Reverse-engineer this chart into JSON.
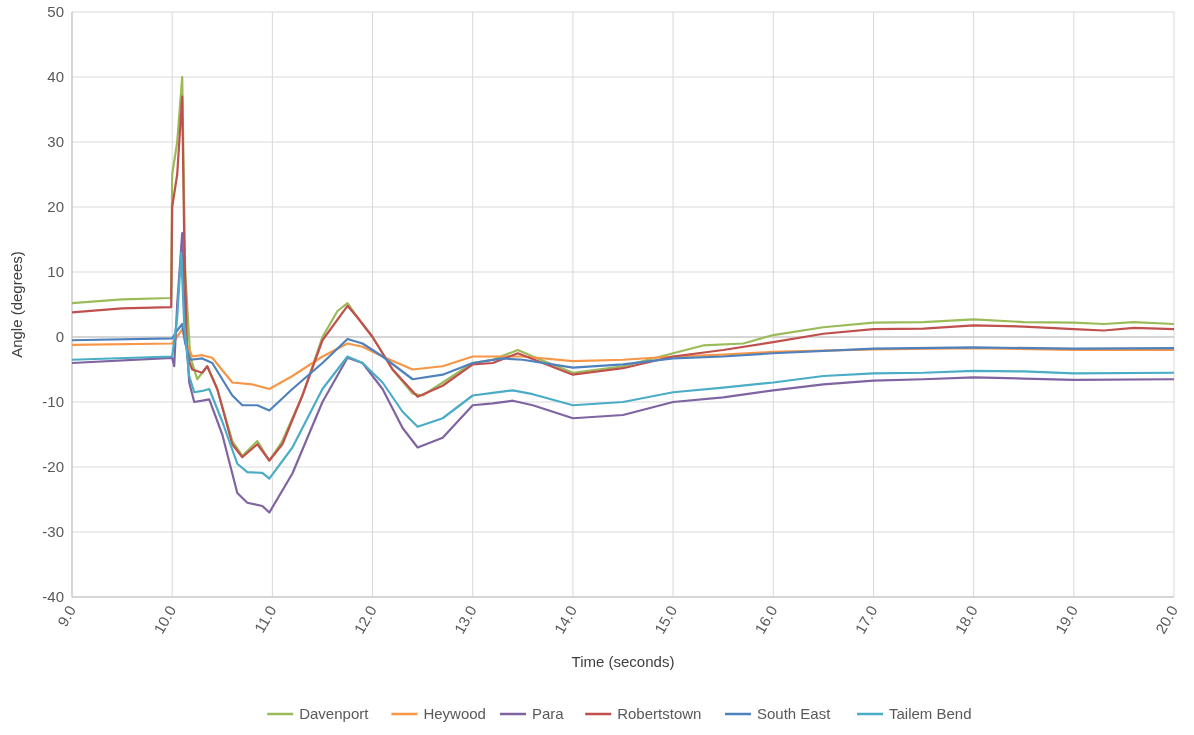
{
  "chart_data": {
    "type": "line",
    "xlabel": "Time (seconds)",
    "ylabel": "Angle (degrees)",
    "xlim": [
      9,
      20
    ],
    "ylim": [
      -40,
      50
    ],
    "xticks": [
      {
        "value": 9,
        "label": "9.0"
      },
      {
        "value": 10,
        "label": "10.0"
      },
      {
        "value": 11,
        "label": "11.0"
      },
      {
        "value": 12,
        "label": "12.0"
      },
      {
        "value": 13,
        "label": "13.0"
      },
      {
        "value": 14,
        "label": "14.0"
      },
      {
        "value": 15,
        "label": "15.0"
      },
      {
        "value": 16,
        "label": "16.0"
      },
      {
        "value": 17,
        "label": "17.0"
      },
      {
        "value": 18,
        "label": "18.0"
      },
      {
        "value": 19,
        "label": "19.0"
      },
      {
        "value": 20,
        "label": "20.0"
      }
    ],
    "yticks": [
      -40,
      -30,
      -20,
      -10,
      0,
      10,
      20,
      30,
      40,
      50
    ],
    "grid": true,
    "legend": "bottom",
    "marker": "none",
    "line_style": "solid",
    "series": [
      {
        "name": "Davenport",
        "color": "#9bbb59",
        "x": [
          9,
          9.5,
          9.99,
          10,
          10.05,
          10.1,
          10.13,
          10.18,
          10.25,
          10.35,
          10.45,
          10.6,
          10.7,
          10.85,
          10.97,
          11.1,
          11.3,
          11.5,
          11.65,
          11.75,
          11.85,
          12,
          12.2,
          12.4,
          12.5,
          12.7,
          13,
          13.2,
          13.45,
          13.6,
          14,
          14.5,
          15,
          15.3,
          15.7,
          16,
          16.5,
          17,
          17.5,
          18,
          18.5,
          19,
          19.3,
          19.6,
          20
        ],
        "values": [
          5.2,
          5.8,
          6,
          25,
          30,
          40,
          10,
          -3,
          -6.5,
          -4.5,
          -8,
          -16,
          -18.3,
          -16,
          -19,
          -16,
          -9,
          0,
          4,
          5.2,
          3,
          0,
          -5,
          -8.7,
          -9,
          -7,
          -4,
          -3.5,
          -2,
          -3,
          -5.5,
          -4.5,
          -2.5,
          -1.3,
          -1,
          0.3,
          1.5,
          2.2,
          2.3,
          2.7,
          2.3,
          2.2,
          2,
          2.3,
          2
        ]
      },
      {
        "name": "Heywood",
        "color": "#f79646",
        "x": [
          9,
          10,
          10.07,
          10.1,
          10.13,
          10.2,
          10.3,
          10.4,
          10.6,
          10.8,
          10.97,
          11.2,
          11.5,
          11.75,
          11.9,
          12.1,
          12.4,
          12.7,
          13,
          13.5,
          14,
          14.5,
          15,
          15.5,
          16,
          17,
          18,
          19,
          20
        ],
        "values": [
          -1.2,
          -1,
          0.5,
          1.2,
          -0.5,
          -3,
          -2.8,
          -3.2,
          -7,
          -7.3,
          -8,
          -6,
          -3,
          -1,
          -1.5,
          -3,
          -5,
          -4.5,
          -3,
          -3,
          -3.7,
          -3.5,
          -3,
          -2.7,
          -2.3,
          -1.9,
          -1.7,
          -2,
          -2
        ]
      },
      {
        "name": "Para",
        "color": "#8064a2",
        "x": [
          9,
          10,
          10.02,
          10.05,
          10.1,
          10.12,
          10.17,
          10.22,
          10.3,
          10.37,
          10.5,
          10.65,
          10.75,
          10.9,
          10.97,
          11.2,
          11.5,
          11.75,
          11.9,
          12.1,
          12.3,
          12.45,
          12.7,
          13,
          13.2,
          13.4,
          13.6,
          14,
          14.5,
          15,
          15.5,
          16,
          16.5,
          17,
          17.5,
          18,
          18.5,
          19,
          20
        ],
        "values": [
          -4,
          -3.2,
          -4.5,
          5,
          16,
          5,
          -7,
          -10,
          -9.8,
          -9.6,
          -15,
          -24,
          -25.5,
          -26,
          -27,
          -21,
          -10,
          -3.2,
          -4,
          -8,
          -14,
          -17,
          -15.5,
          -10.5,
          -10.2,
          -9.8,
          -10.5,
          -12.5,
          -12,
          -10,
          -9.3,
          -8.2,
          -7.3,
          -6.7,
          -6.5,
          -6.2,
          -6.4,
          -6.6,
          -6.5
        ]
      },
      {
        "name": "Robertstown",
        "color": "#c0504d",
        "x": [
          9,
          9.5,
          9.99,
          10,
          10.05,
          10.1,
          10.12,
          10.15,
          10.2,
          10.3,
          10.35,
          10.45,
          10.6,
          10.7,
          10.85,
          10.97,
          11.1,
          11.3,
          11.5,
          11.75,
          11.85,
          12,
          12.2,
          12.45,
          12.7,
          13,
          13.2,
          13.45,
          14,
          14.5,
          15,
          15.5,
          16,
          16.5,
          17,
          17.5,
          18,
          18.5,
          19,
          19.3,
          19.6,
          20
        ],
        "values": [
          3.8,
          4.4,
          4.6,
          20,
          25,
          37,
          15,
          -3,
          -5,
          -5.5,
          -4.5,
          -8,
          -16.5,
          -18.5,
          -16.5,
          -19,
          -16.5,
          -9,
          -0.5,
          4.8,
          3,
          0,
          -5,
          -9.2,
          -7.5,
          -4.2,
          -4,
          -2.5,
          -5.8,
          -4.8,
          -3,
          -2,
          -0.8,
          0.5,
          1.2,
          1.3,
          1.8,
          1.6,
          1.2,
          1,
          1.4,
          1.2
        ]
      },
      {
        "name": "South East",
        "color": "#4f81bd",
        "x": [
          9,
          10,
          10.05,
          10.1,
          10.13,
          10.18,
          10.3,
          10.4,
          10.6,
          10.7,
          10.85,
          10.97,
          11.2,
          11.5,
          11.75,
          11.9,
          12.1,
          12.4,
          12.7,
          13,
          13.3,
          13.5,
          14,
          14.5,
          15,
          15.5,
          16,
          17,
          18,
          19,
          20
        ],
        "values": [
          -0.5,
          -0.2,
          1,
          2,
          -1,
          -3.5,
          -3.3,
          -4,
          -9,
          -10.5,
          -10.5,
          -11.3,
          -8,
          -4,
          -0.3,
          -1,
          -3,
          -6.5,
          -5.8,
          -4,
          -3.3,
          -3.5,
          -4.7,
          -4.2,
          -3.3,
          -3,
          -2.5,
          -1.8,
          -1.6,
          -1.8,
          -1.7
        ]
      },
      {
        "name": "Tailem Bend",
        "color": "#4bacc6",
        "x": [
          9,
          10,
          10.05,
          10.09,
          10.12,
          10.17,
          10.22,
          10.3,
          10.37,
          10.5,
          10.65,
          10.75,
          10.9,
          10.97,
          11.2,
          11.5,
          11.75,
          11.9,
          12.1,
          12.3,
          12.45,
          12.7,
          13,
          13.2,
          13.4,
          13.6,
          14,
          14.5,
          15,
          15.5,
          16,
          16.5,
          17,
          17.5,
          18,
          18.5,
          19,
          20
        ],
        "values": [
          -3.5,
          -3,
          3,
          13,
          2,
          -6,
          -8.5,
          -8.3,
          -8,
          -13,
          -19.5,
          -20.8,
          -20.9,
          -21.8,
          -17,
          -8,
          -3,
          -4,
          -7,
          -11.5,
          -13.8,
          -12.5,
          -9,
          -8.6,
          -8.2,
          -8.8,
          -10.5,
          -10,
          -8.5,
          -7.8,
          -7,
          -6,
          -5.6,
          -5.5,
          -5.2,
          -5.3,
          -5.6,
          -5.5
        ]
      }
    ]
  }
}
